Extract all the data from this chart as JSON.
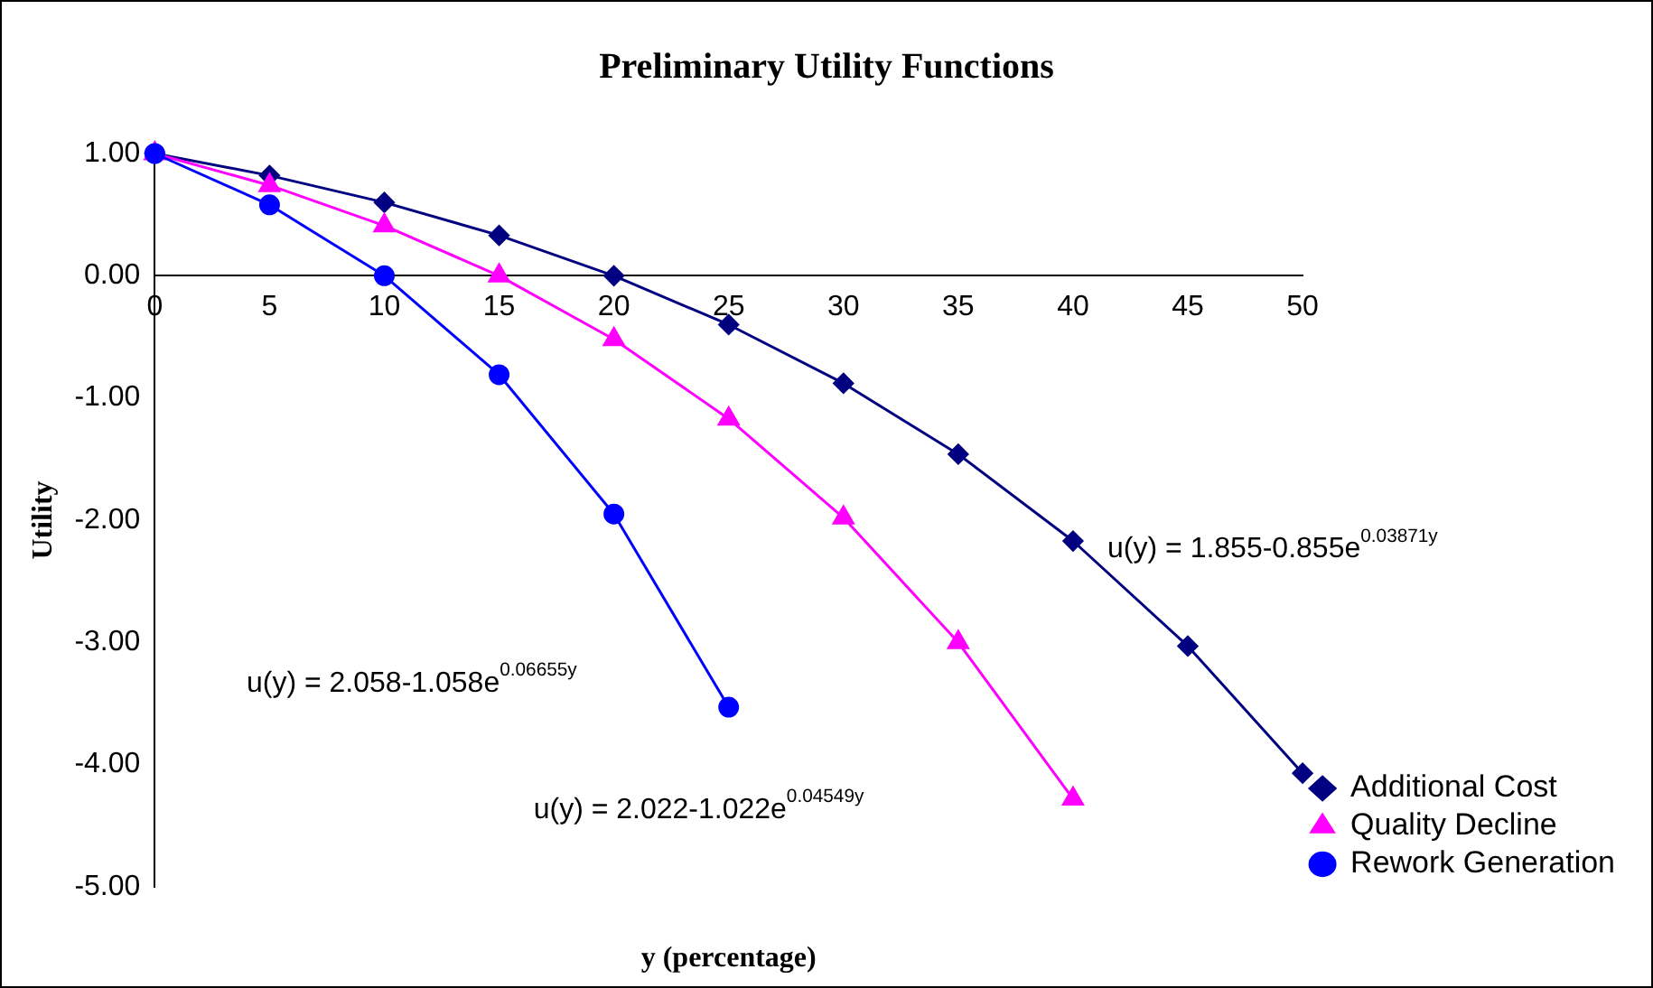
{
  "chart_data": {
    "type": "line",
    "title": "Preliminary Utility Functions",
    "xlabel": "y (percentage)",
    "ylabel": "Utility",
    "xlim": [
      0,
      50
    ],
    "xticks": [
      0,
      5,
      10,
      15,
      20,
      25,
      30,
      35,
      40,
      45,
      50
    ],
    "ylim": [
      -5,
      1
    ],
    "yticks": [
      {
        "value": -5,
        "label": "-5.00"
      },
      {
        "value": -4,
        "label": "-4.00"
      },
      {
        "value": -3,
        "label": "-3.00"
      },
      {
        "value": -2,
        "label": "-2.00"
      },
      {
        "value": -1,
        "label": "-1.00"
      },
      {
        "value": 0,
        "label": "0.00"
      },
      {
        "value": 1,
        "label": "1.00"
      }
    ],
    "grid": false,
    "legend": "bottom right",
    "series": [
      {
        "name": "Additional Cost",
        "color": "#000080",
        "marker": "diamond",
        "x": [
          0,
          5,
          10,
          15,
          20,
          25,
          30,
          35,
          40,
          45,
          50
        ],
        "values": [
          1.0,
          0.82,
          0.6,
          0.33,
          0.0,
          -0.4,
          -0.88,
          -1.46,
          -2.17,
          -3.03,
          -4.07
        ]
      },
      {
        "name": "Quality Decline",
        "color": "#ff00ff",
        "marker": "triangle",
        "x": [
          0,
          5,
          10,
          15,
          20,
          25,
          30,
          35,
          40
        ],
        "values": [
          1.0,
          0.74,
          0.41,
          0.0,
          -0.52,
          -1.17,
          -1.98,
          -3.0,
          -4.28
        ]
      },
      {
        "name": "Rework Generation",
        "color": "#0000ff",
        "marker": "circle",
        "x": [
          0,
          5,
          10,
          15,
          20,
          25
        ],
        "values": [
          1.0,
          0.58,
          0.0,
          -0.81,
          -1.95,
          -3.53
        ]
      }
    ],
    "annotations": [
      "u(y) = 1.855-0.855e$^{0.03871y}$",
      "u(y) = 2.058-1.058e$^{0.06655y}$",
      "u(y) = 2.022-1.022e$^{0.04549y}$"
    ]
  }
}
